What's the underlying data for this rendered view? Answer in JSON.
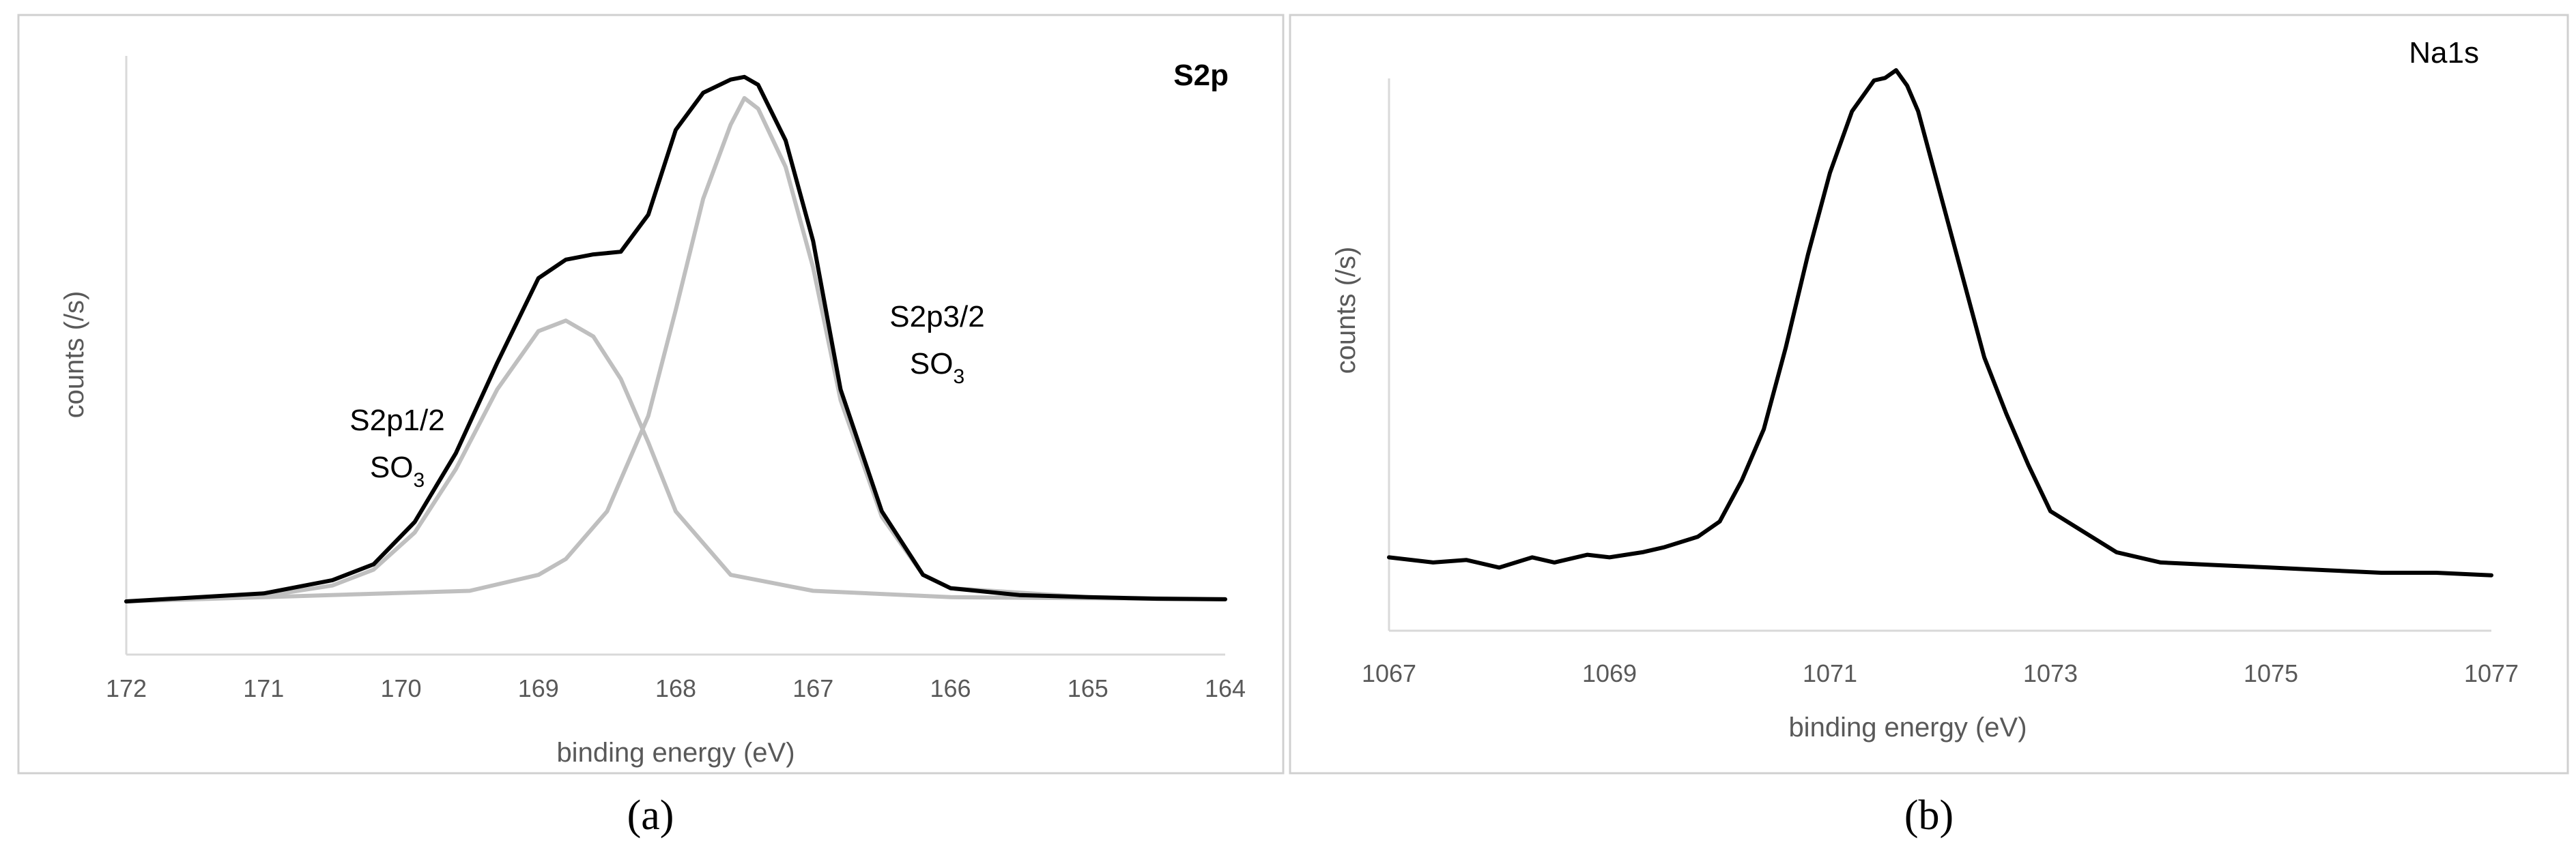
{
  "chart_data": [
    {
      "type": "line",
      "title": "S2p",
      "xlabel": "binding energy (eV)",
      "ylabel": "counts (/s)",
      "xlim": [
        172,
        164
      ],
      "x_reversed": true,
      "x_ticks": [
        "172",
        "171",
        "170",
        "169",
        "168",
        "167",
        "166",
        "165",
        "164"
      ],
      "annotations": [
        {
          "line1": "S2p1/2",
          "line2_base": "SO",
          "line2_sub": "3"
        },
        {
          "line1": "S2p3/2",
          "line2_base": "SO",
          "line2_sub": "3"
        }
      ],
      "caption": "(a)",
      "colors": {
        "envelope": "#000000",
        "components": "#bfbfbf"
      },
      "series": [
        {
          "role": "envelope",
          "x": [
            172,
            171,
            170.5,
            170.2,
            169.9,
            169.6,
            169.3,
            169.0,
            168.8,
            168.6,
            168.4,
            168.2,
            168.0,
            167.8,
            167.6,
            167.5,
            167.4,
            167.2,
            167.0,
            166.8,
            166.5,
            166.2,
            166.0,
            165.5,
            165.0,
            164.5,
            164.0
          ],
          "y": [
            0.0,
            0.015,
            0.04,
            0.07,
            0.15,
            0.28,
            0.45,
            0.61,
            0.645,
            0.655,
            0.66,
            0.73,
            0.89,
            0.96,
            0.985,
            0.99,
            0.975,
            0.87,
            0.68,
            0.4,
            0.17,
            0.05,
            0.025,
            0.012,
            0.008,
            0.005,
            0.004
          ]
        },
        {
          "role": "component",
          "x": [
            172,
            171,
            170.5,
            170.2,
            169.9,
            169.6,
            169.3,
            169.0,
            168.8,
            168.6,
            168.4,
            168.2,
            168.0,
            167.6,
            167.0,
            166.0,
            164.0
          ],
          "y": [
            0.0,
            0.01,
            0.03,
            0.06,
            0.13,
            0.25,
            0.4,
            0.51,
            0.53,
            0.5,
            0.42,
            0.3,
            0.17,
            0.05,
            0.02,
            0.008,
            0.004
          ]
        },
        {
          "role": "component",
          "x": [
            172,
            169.5,
            169.0,
            168.8,
            168.5,
            168.2,
            168.0,
            167.8,
            167.6,
            167.5,
            167.4,
            167.2,
            167.0,
            166.8,
            166.5,
            166.2,
            166.0,
            165.0,
            164.0
          ],
          "y": [
            0.0,
            0.02,
            0.05,
            0.08,
            0.17,
            0.35,
            0.55,
            0.76,
            0.9,
            0.95,
            0.93,
            0.82,
            0.63,
            0.38,
            0.16,
            0.05,
            0.025,
            0.008,
            0.004
          ]
        }
      ]
    },
    {
      "type": "line",
      "title": "Na1s",
      "xlabel": "binding energy (eV)",
      "ylabel": "counts (/s)",
      "xlim": [
        1067,
        1077
      ],
      "x_ticks": [
        "1067",
        "1069",
        "1071",
        "1073",
        "1075",
        "1077"
      ],
      "caption": "(b)",
      "colors": {
        "line": "#000000"
      },
      "series": [
        {
          "x": [
            1067.0,
            1067.4,
            1067.7,
            1068.0,
            1068.3,
            1068.5,
            1068.8,
            1069.0,
            1069.3,
            1069.5,
            1069.8,
            1070.0,
            1070.2,
            1070.4,
            1070.6,
            1070.8,
            1071.0,
            1071.2,
            1071.4,
            1071.5,
            1071.6,
            1071.7,
            1071.8,
            1072.0,
            1072.2,
            1072.4,
            1072.6,
            1072.8,
            1073.0,
            1073.3,
            1073.6,
            1074.0,
            1074.5,
            1075.0,
            1075.5,
            1076.0,
            1076.5,
            1077.0
          ],
          "y": [
            0.05,
            0.04,
            0.045,
            0.03,
            0.05,
            0.04,
            0.055,
            0.05,
            0.06,
            0.07,
            0.09,
            0.12,
            0.2,
            0.3,
            0.46,
            0.64,
            0.8,
            0.92,
            0.98,
            0.985,
            1.0,
            0.97,
            0.92,
            0.76,
            0.6,
            0.44,
            0.33,
            0.23,
            0.14,
            0.1,
            0.06,
            0.04,
            0.035,
            0.03,
            0.025,
            0.02,
            0.02,
            0.015
          ]
        }
      ]
    }
  ]
}
